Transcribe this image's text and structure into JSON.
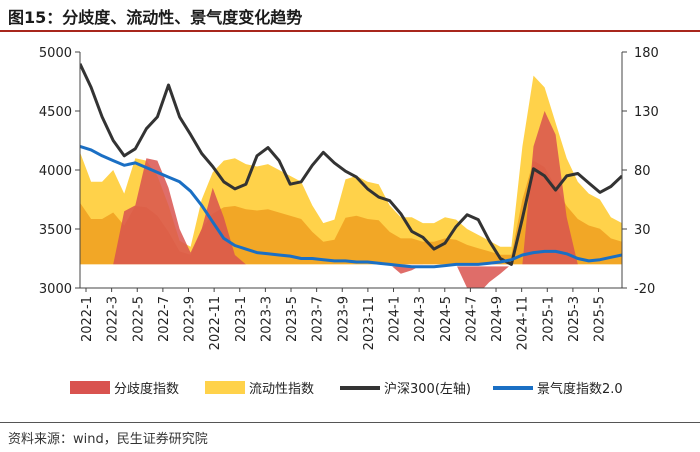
{
  "title": "图15：分歧度、流动性、景气度变化趋势",
  "source": "资料来源：wind，民生证券研究院",
  "chart_data": {
    "type": "line",
    "x_ticks": [
      "2022-1",
      "2022-3",
      "2022-5",
      "2022-7",
      "2022-9",
      "2022-11",
      "2023-1",
      "2023-3",
      "2023-5",
      "2023-7",
      "2023-9",
      "2023-11",
      "2024-1",
      "2024-3",
      "2024-5",
      "2024-7",
      "2024-9",
      "2024-11",
      "2025-1",
      "2025-3",
      "2025-5"
    ],
    "left_axis": {
      "ticks": [
        "5000",
        "4500",
        "4000",
        "3500",
        "3000"
      ],
      "min": 3000,
      "max": 5000
    },
    "right_axis": {
      "ticks": [
        "180",
        "130",
        "80",
        "30",
        "-20"
      ],
      "min": -20,
      "max": 180
    },
    "legend": [
      "分歧度指数",
      "流动性指数",
      "沪深300(左轴)",
      "景气度指数2.0"
    ],
    "colors": {
      "divergence": "#d9534f",
      "liquidity": "#ffd24a",
      "liquidity_dark": "#f0a020",
      "hs300": "#333333",
      "prosperity": "#1a6fc4"
    },
    "series": [
      {
        "name": "沪深300(左轴)",
        "axis": "left",
        "values": [
          4900,
          4700,
          4450,
          4250,
          4120,
          4180,
          4350,
          4450,
          4720,
          4450,
          4300,
          4140,
          4030,
          3900,
          3840,
          3880,
          4120,
          4190,
          4080,
          3880,
          3900,
          4040,
          4150,
          4060,
          3990,
          3940,
          3840,
          3770,
          3740,
          3630,
          3480,
          3430,
          3330,
          3380,
          3520,
          3620,
          3580,
          3400,
          3250,
          3200,
          3590,
          4010,
          3950,
          3830,
          3950,
          3970,
          3890,
          3810,
          3860,
          3950
        ]
      },
      {
        "name": "景气度指数2.0",
        "axis": "right",
        "values": [
          100,
          97,
          92,
          88,
          84,
          86,
          82,
          78,
          74,
          70,
          62,
          50,
          36,
          22,
          16,
          13,
          10,
          9,
          8,
          7,
          5,
          5,
          4,
          3,
          3,
          2,
          2,
          1,
          0,
          -1,
          -2,
          -2,
          -2,
          -1,
          0,
          0,
          0,
          1,
          2,
          4,
          8,
          10,
          11,
          11,
          9,
          5,
          3,
          4,
          6,
          8
        ]
      },
      {
        "name": "流动性指数",
        "axis": "right",
        "values": [
          95,
          70,
          70,
          80,
          60,
          90,
          88,
          75,
          50,
          20,
          15,
          55,
          78,
          88,
          90,
          85,
          83,
          85,
          80,
          75,
          70,
          50,
          35,
          38,
          72,
          75,
          70,
          68,
          50,
          40,
          40,
          35,
          35,
          40,
          38,
          30,
          25,
          20,
          15,
          15,
          100,
          160,
          150,
          120,
          90,
          70,
          60,
          55,
          40,
          35
        ]
      },
      {
        "name": "分歧度指数",
        "axis": "right",
        "values": [
          0,
          0,
          0,
          0,
          45,
          50,
          90,
          88,
          65,
          30,
          10,
          30,
          65,
          40,
          8,
          0,
          0,
          0,
          0,
          0,
          0,
          0,
          0,
          0,
          0,
          0,
          0,
          0,
          0,
          -8,
          -5,
          0,
          0,
          0,
          0,
          -20,
          -25,
          -15,
          -8,
          0,
          0,
          100,
          130,
          110,
          40,
          0,
          0,
          0,
          0,
          0
        ]
      }
    ]
  }
}
